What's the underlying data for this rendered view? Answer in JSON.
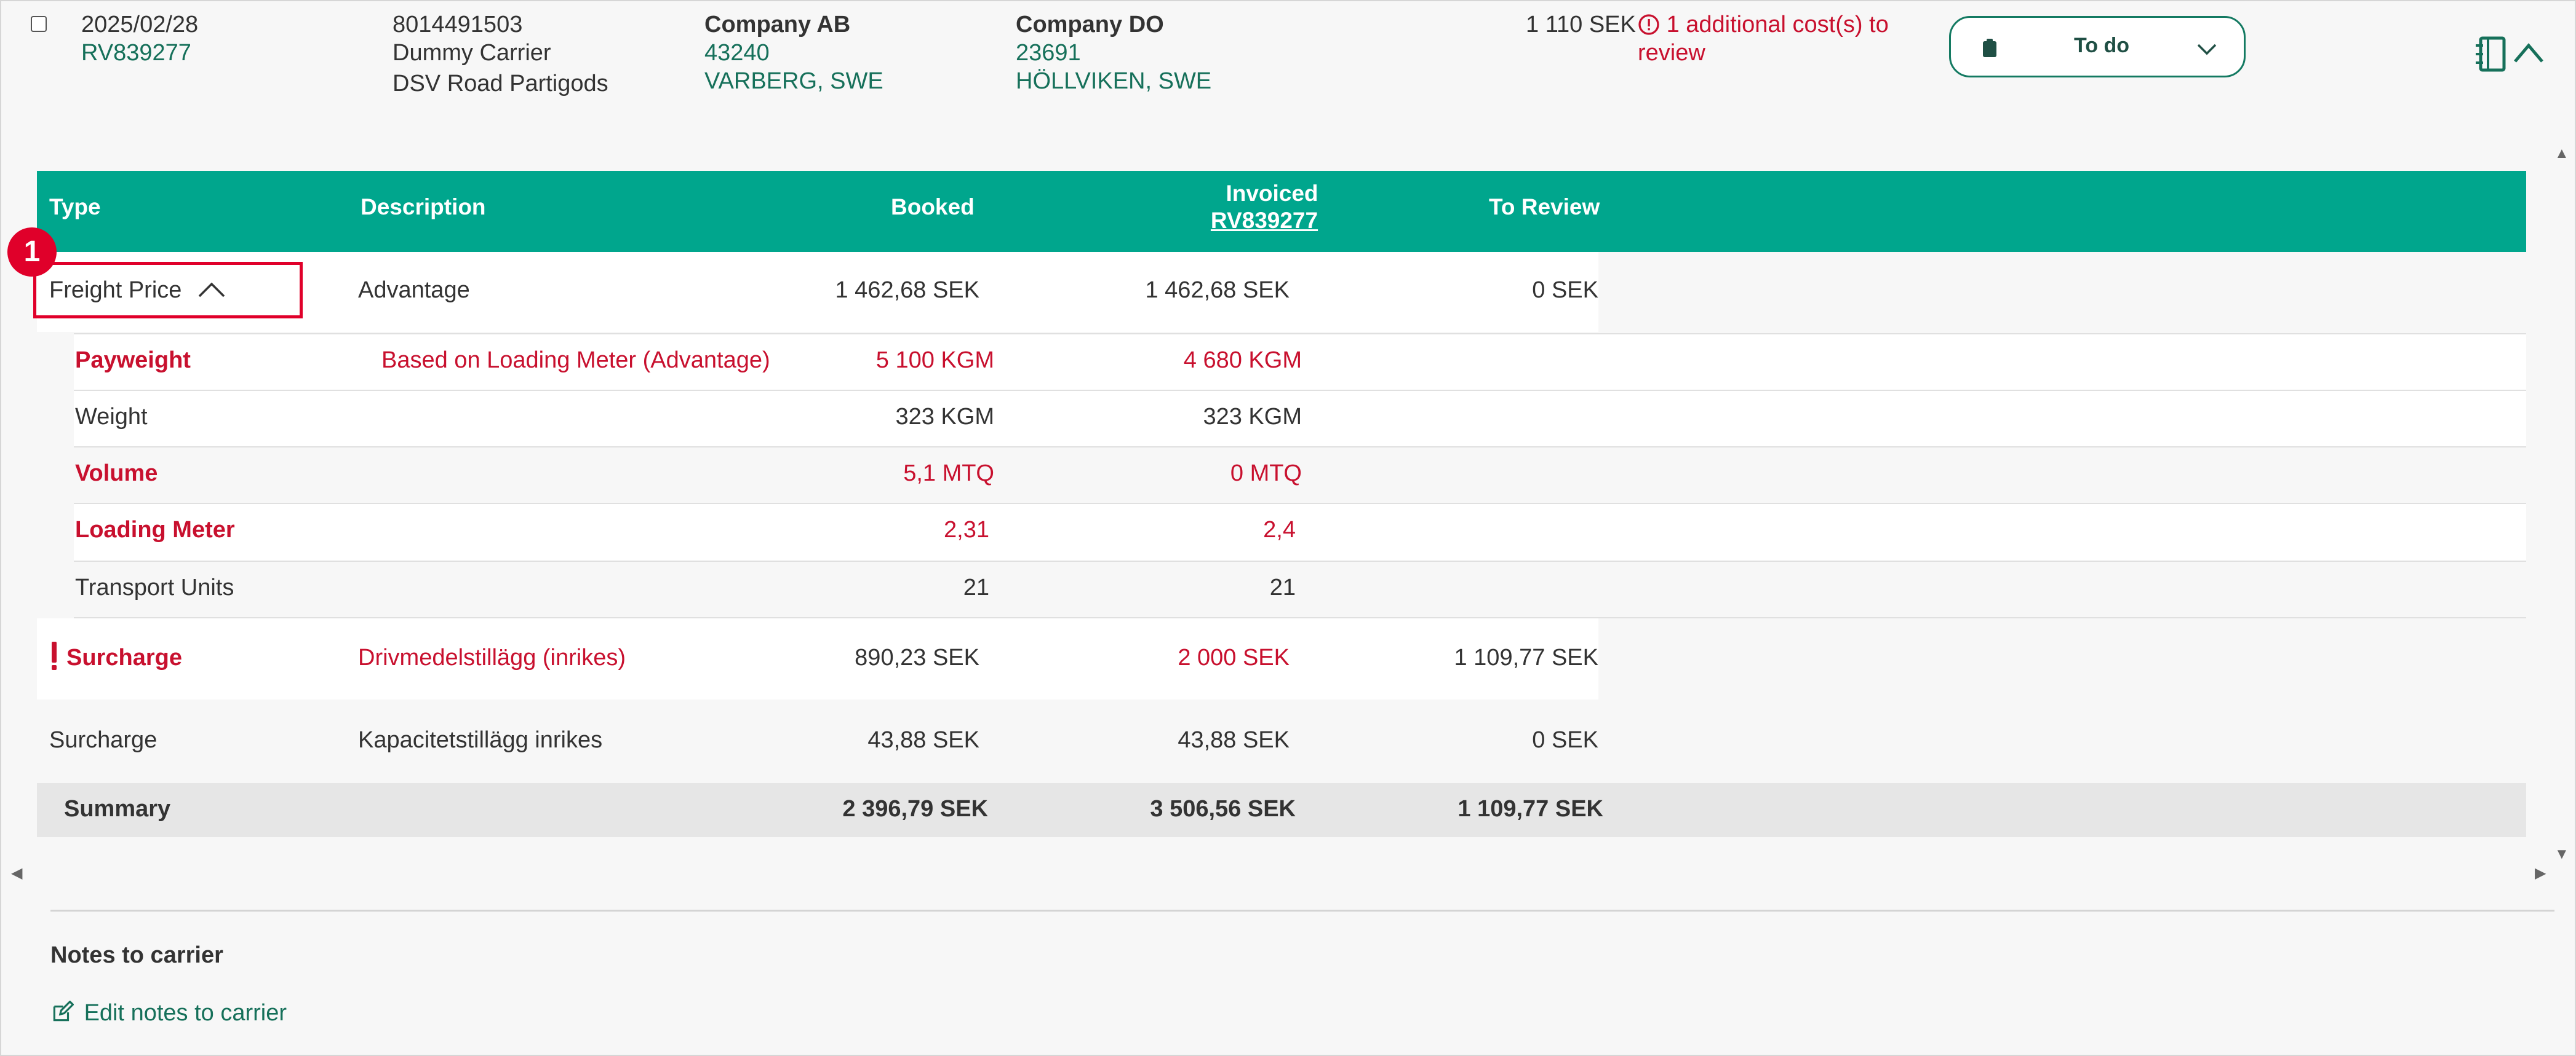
{
  "shipment": {
    "date": "2025/02/28",
    "reference": "RV839277",
    "tracking_number": "8014491503",
    "carrier_name": "Dummy Carrier",
    "carrier_service": "DSV Road Partigods",
    "sender": {
      "company": "Company AB",
      "postal_code": "43240",
      "city": "VARBERG, SWE"
    },
    "receiver": {
      "company": "Company DO",
      "postal_code": "23691",
      "city": "HÖLLVIKEN, SWE"
    },
    "amount": "1 110 SEK",
    "review_notice": "1 additional cost(s) to",
    "review_notice_line2": "review",
    "status": {
      "label": "To do"
    }
  },
  "table": {
    "headers": {
      "type": "Type",
      "description": "Description",
      "booked": "Booked",
      "invoiced": "Invoiced",
      "invoiced_ref": "RV839277",
      "to_review": "To Review"
    },
    "freight_row": {
      "type": "Freight Price",
      "description": "Advantage",
      "booked": "1 462,68 SEK",
      "invoiced": "1 462,68 SEK",
      "to_review": "0 SEK"
    },
    "detail_rows": [
      {
        "label": "Payweight",
        "description": "Based on Loading Meter (Advantage)",
        "booked": "5 100 KGM",
        "invoiced": "4 680 KGM"
      },
      {
        "label": "Weight",
        "description": "",
        "booked": "323 KGM",
        "invoiced": "323 KGM"
      },
      {
        "label": "Volume",
        "description": "",
        "booked": "5,1 MTQ",
        "invoiced": "0 MTQ"
      },
      {
        "label": "Loading Meter",
        "description": "",
        "booked": "2,31",
        "invoiced": "2,4"
      },
      {
        "label": "Transport Units",
        "description": "",
        "booked": "21",
        "invoiced": "21"
      }
    ],
    "surcharge_rows": [
      {
        "type": "Surcharge",
        "description": "Drivmedelstillägg (inrikes)",
        "booked": "890,23 SEK",
        "invoiced": "2 000 SEK",
        "to_review": "1 109,77 SEK"
      },
      {
        "type": "Surcharge",
        "description": "Kapacitetstillägg inrikes",
        "booked": "43,88 SEK",
        "invoiced": "43,88 SEK",
        "to_review": "0 SEK"
      }
    ],
    "summary": {
      "label": "Summary",
      "booked": "2 396,79 SEK",
      "invoiced": "3 506,56 SEK",
      "to_review": "1 109,77 SEK"
    }
  },
  "annotation": {
    "badge": "1"
  },
  "notes": {
    "title": "Notes to carrier",
    "edit_link": "Edit notes to carrier"
  },
  "colors": {
    "header_green": "#00a68d",
    "link_green": "#16705a",
    "alert_red": "#c8102e",
    "highlight_red": "#e0002a"
  }
}
